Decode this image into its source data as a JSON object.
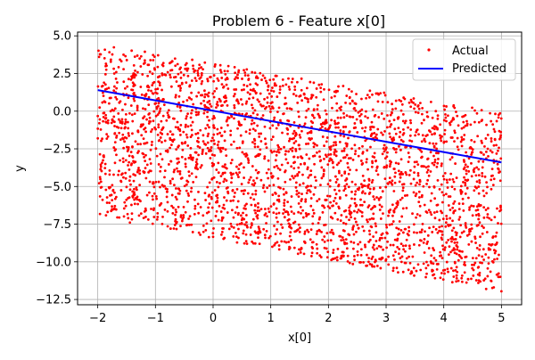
{
  "chart_data": {
    "type": "scatter",
    "title": "Problem 6 - Feature x[0]",
    "xlabel": "x[0]",
    "ylabel": "y",
    "xlim": [
      -2.35,
      5.35
    ],
    "ylim": [
      -12.85,
      5.25
    ],
    "xticks": [
      -2,
      -1,
      0,
      1,
      2,
      3,
      4,
      5
    ],
    "xtick_labels": [
      "−2",
      "−1",
      "0",
      "1",
      "2",
      "3",
      "4",
      "5"
    ],
    "yticks": [
      5.0,
      2.5,
      0.0,
      -2.5,
      -5.0,
      -7.5,
      -10.0,
      -12.5
    ],
    "ytick_labels": [
      "5.0",
      "2.5",
      "0.0",
      "−2.5",
      "−5.0",
      "−7.5",
      "−10.0",
      "−12.5"
    ],
    "grid": true,
    "legend_position": "top-right",
    "series": [
      {
        "name": "Actual",
        "kind": "scatter",
        "color": "#ff0000",
        "x_range": [
          -2,
          5
        ],
        "upper_bound": [
          [
            -2,
            4.5
          ],
          [
            5,
            -0.1
          ]
        ],
        "lower_bound": [
          [
            -2,
            -7.0
          ],
          [
            5,
            -12.0
          ]
        ],
        "count": 3000
      },
      {
        "name": "Predicted",
        "kind": "line",
        "color": "#0000ff",
        "x": [
          -2,
          5
        ],
        "y": [
          1.4,
          -3.4
        ]
      }
    ]
  }
}
